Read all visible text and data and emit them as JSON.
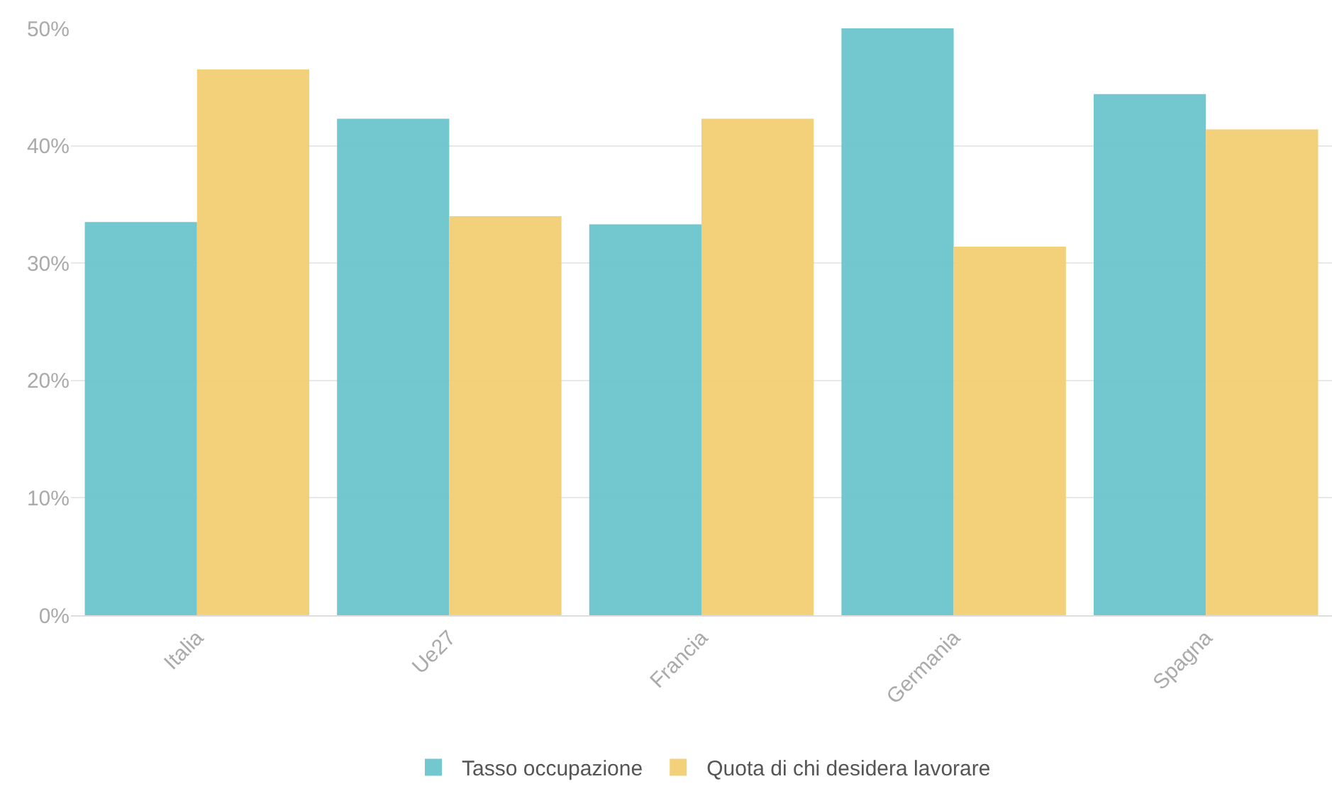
{
  "chart_data": {
    "type": "bar",
    "categories": [
      "Italia",
      "Ue27",
      "Francia",
      "Germania",
      "Spagna"
    ],
    "series": [
      {
        "name": "Tasso occupazione",
        "color": "#6cc6ce",
        "values": [
          33.5,
          42.3,
          33.3,
          50.0,
          44.4
        ]
      },
      {
        "name": "Quota di chi desidera lavorare",
        "color": "#f3cf74",
        "values": [
          46.5,
          34.0,
          42.3,
          31.4,
          41.4
        ]
      }
    ],
    "ylim": [
      0,
      50
    ],
    "yticks": [
      {
        "value": 0,
        "label": "0%"
      },
      {
        "value": 10,
        "label": "10%"
      },
      {
        "value": 20,
        "label": "20%"
      },
      {
        "value": 30,
        "label": "30%"
      },
      {
        "value": 40,
        "label": "40%"
      },
      {
        "value": 50,
        "label": "50%"
      }
    ],
    "grid": "y",
    "legend": "bottom"
  }
}
